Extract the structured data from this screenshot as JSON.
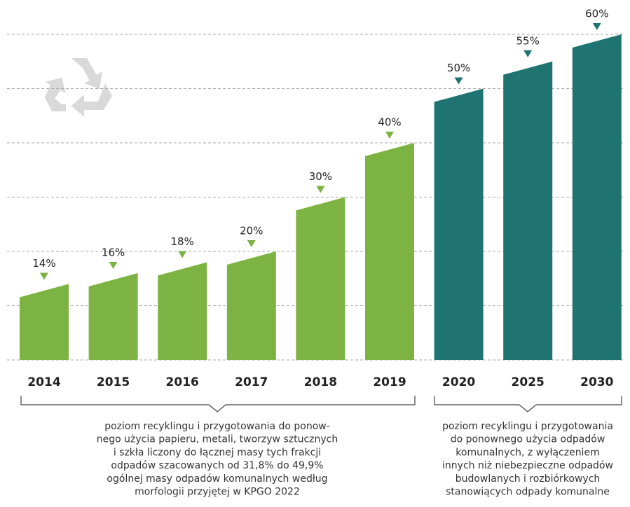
{
  "chart_data": {
    "type": "bar",
    "categories": [
      "2014",
      "2015",
      "2016",
      "2017",
      "2018",
      "2019",
      "2020",
      "2025",
      "2030"
    ],
    "values": [
      14,
      16,
      18,
      20,
      30,
      40,
      50,
      55,
      60
    ],
    "value_labels": [
      "14%",
      "16%",
      "18%",
      "20%",
      "30%",
      "40%",
      "50%",
      "55%",
      "60%"
    ],
    "colors": [
      "#7cb342",
      "#7cb342",
      "#7cb342",
      "#7cb342",
      "#7cb342",
      "#7cb342",
      "#1f7472",
      "#1f7472",
      "#1f7472"
    ],
    "ylim": [
      0,
      60
    ],
    "yticks": [
      0,
      10,
      20,
      30,
      40,
      50,
      60
    ],
    "grid": true,
    "annotations": [
      [
        "poziom recyklingu i przygotowania do ponow-",
        "nego użycia papieru, metali, tworzyw sztucznych",
        "i szkła liczony do łącznej masy tych frakcji",
        "odpadów szacowanych od 31,8% do 49,9%",
        "ogólnej masy odpadów komunalnych według",
        "morfologii przyjętej w KPGO 2022"
      ],
      [
        "poziom recyklingu i przygotowania",
        "do ponownego użycia odpadów",
        "komunalnych, z wyłączeniem",
        "innych niż niebezpieczne odpadów",
        "budowlanych i rozbiórkowych",
        "stanowiących odpady komunalne"
      ]
    ]
  }
}
